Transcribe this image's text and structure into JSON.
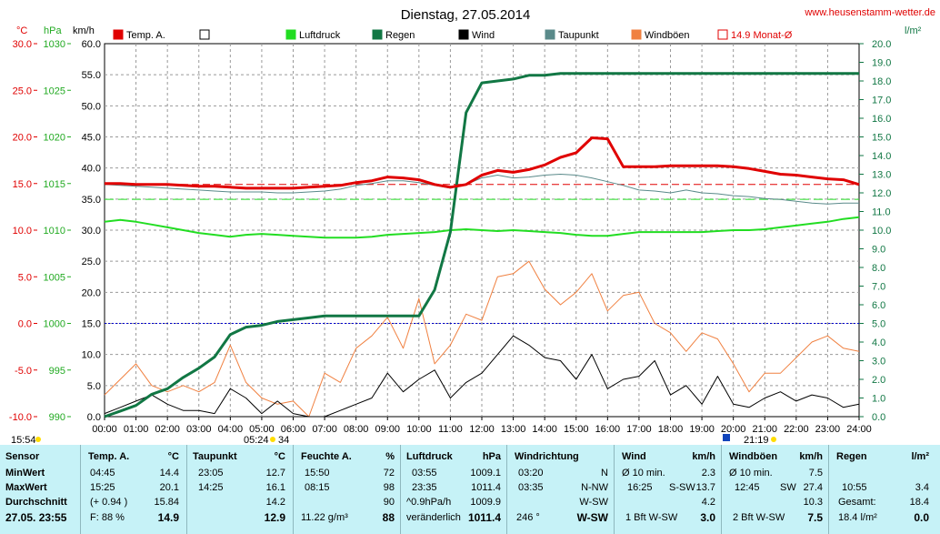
{
  "title": "Dienstag, 27.05.2014",
  "site": "www.heusenstamm-wetter.de",
  "unit_labels": {
    "celsius": "°C",
    "hpa": "hPa",
    "kmh": "km/h",
    "lm2": "l/m²"
  },
  "legend": [
    {
      "label": "Temp. A.",
      "color": "#e00000"
    },
    {
      "label": "",
      "color": "#ffffff"
    },
    {
      "label": "Luftdruck",
      "color": "#22dd22"
    },
    {
      "label": "Regen",
      "color": "#117744"
    },
    {
      "label": "Wind",
      "color": "#000000"
    },
    {
      "label": "Taupunkt",
      "color": "#5a8a8a"
    },
    {
      "label": "Windböen",
      "color": "#f08040"
    },
    {
      "label": "14.9 Monat-Ø",
      "color": "#e00000"
    }
  ],
  "axis_ticks": {
    "temp": [
      "30.0",
      "25.0",
      "20.0",
      "15.0",
      "10.0",
      "5.0",
      "0.0",
      "-5.0",
      "-10.0"
    ],
    "pressure": [
      "1030",
      "1025",
      "1020",
      "1015",
      "1010",
      "1005",
      "1000",
      "995",
      "990"
    ],
    "wind": [
      "60.0",
      "55.0",
      "50.0",
      "45.0",
      "40.0",
      "35.0",
      "30.0",
      "25.0",
      "20.0",
      "15.0",
      "10.0",
      "5.0",
      "0.0"
    ],
    "rain": [
      "20.0",
      "19.0",
      "18.0",
      "17.0",
      "16.0",
      "15.0",
      "14.0",
      "13.0",
      "12.0",
      "11.0",
      "10.0",
      "9.0",
      "8.0",
      "7.0",
      "6.0",
      "5.0",
      "4.0",
      "3.0",
      "2.0",
      "1.0",
      "0.0"
    ],
    "time": [
      "00:00",
      "01:00",
      "02:00",
      "03:00",
      "04:00",
      "05:00",
      "06:00",
      "07:00",
      "08:00",
      "09:00",
      "10:00",
      "11:00",
      "12:00",
      "13:00",
      "14:00",
      "15:00",
      "16:00",
      "17:00",
      "18:00",
      "19:00",
      "20:00",
      "21:00",
      "22:00",
      "23:00",
      "24:00"
    ]
  },
  "markers": {
    "sunrise": "05:24",
    "sunrise_suffix": "34",
    "sunset": "21:19",
    "corner_time": "15:54"
  },
  "colors": {
    "temp": "#e00000",
    "pressure": "#22dd22",
    "rain": "#117744",
    "wind": "#000000",
    "dew": "#5a8a8a",
    "gust": "#f08040",
    "zero_line": "#0000cc",
    "panel_bg": "#c6f2f7"
  },
  "chart_data": {
    "type": "line",
    "title": "Dienstag, 27.05.2014",
    "x_hours": [
      0,
      0.5,
      1,
      1.5,
      2,
      2.5,
      3,
      3.5,
      4,
      4.5,
      5,
      5.5,
      6,
      6.5,
      7,
      7.5,
      8,
      8.5,
      9,
      9.5,
      10,
      10.5,
      11,
      11.5,
      12,
      12.5,
      13,
      13.5,
      14,
      14.5,
      15,
      15.5,
      16,
      16.5,
      17,
      17.5,
      18,
      18.5,
      19,
      19.5,
      20,
      20.5,
      21,
      21.5,
      22,
      22.5,
      23,
      23.5,
      24
    ],
    "series": [
      {
        "name": "Temp. A.",
        "axis": "celsius",
        "values": [
          15.0,
          15.0,
          14.9,
          14.9,
          14.9,
          14.8,
          14.7,
          14.7,
          14.6,
          14.5,
          14.5,
          14.5,
          14.5,
          14.6,
          14.7,
          14.8,
          15.1,
          15.3,
          15.7,
          15.6,
          15.4,
          14.9,
          14.6,
          14.9,
          15.9,
          16.4,
          16.2,
          16.5,
          17.0,
          17.8,
          18.3,
          19.9,
          19.8,
          16.8,
          16.8,
          16.8,
          16.9,
          16.9,
          16.9,
          16.9,
          16.8,
          16.6,
          16.3,
          16.0,
          15.9,
          15.7,
          15.5,
          15.4,
          14.9
        ]
      },
      {
        "name": "Taupunkt",
        "axis": "celsius",
        "values": [
          14.9,
          14.8,
          14.7,
          14.6,
          14.5,
          14.4,
          14.3,
          14.2,
          14.1,
          14.1,
          14.1,
          14.0,
          14.0,
          14.1,
          14.2,
          14.4,
          14.8,
          15.0,
          15.3,
          15.3,
          15.1,
          14.8,
          14.5,
          14.9,
          15.6,
          15.9,
          15.6,
          15.7,
          15.9,
          16.0,
          15.9,
          15.6,
          15.2,
          14.8,
          14.3,
          14.2,
          14.0,
          14.3,
          14.0,
          13.9,
          13.7,
          13.6,
          13.4,
          13.3,
          13.1,
          12.9,
          12.8,
          12.9,
          12.9
        ]
      },
      {
        "name": "Luftdruck",
        "axis": "hPa",
        "values": [
          1010.9,
          1011.1,
          1010.9,
          1010.6,
          1010.3,
          1010.0,
          1009.7,
          1009.5,
          1009.3,
          1009.5,
          1009.6,
          1009.5,
          1009.4,
          1009.3,
          1009.2,
          1009.2,
          1009.2,
          1009.3,
          1009.5,
          1009.6,
          1009.7,
          1009.8,
          1010.0,
          1010.1,
          1010.0,
          1009.9,
          1010.0,
          1009.9,
          1009.8,
          1009.7,
          1009.5,
          1009.4,
          1009.4,
          1009.6,
          1009.8,
          1009.8,
          1009.8,
          1009.8,
          1009.8,
          1009.9,
          1010.0,
          1010.0,
          1010.1,
          1010.3,
          1010.5,
          1010.7,
          1010.9,
          1011.2,
          1011.4
        ]
      },
      {
        "name": "Regen",
        "axis": "l/m²",
        "values": [
          0.0,
          0.3,
          0.6,
          1.2,
          1.5,
          2.1,
          2.6,
          3.2,
          4.4,
          4.8,
          4.9,
          5.1,
          5.2,
          5.3,
          5.4,
          5.4,
          5.4,
          5.4,
          5.4,
          5.4,
          5.4,
          6.8,
          9.9,
          16.3,
          17.9,
          18.0,
          18.1,
          18.3,
          18.3,
          18.4,
          18.4,
          18.4,
          18.4,
          18.4,
          18.4,
          18.4,
          18.4,
          18.4,
          18.4,
          18.4,
          18.4,
          18.4,
          18.4,
          18.4,
          18.4,
          18.4,
          18.4,
          18.4,
          18.4
        ]
      },
      {
        "name": "Wind",
        "axis": "km/h",
        "values": [
          0.5,
          1.5,
          2.5,
          3.5,
          2.0,
          1.0,
          1.0,
          0.5,
          4.5,
          3.0,
          0.5,
          2.5,
          0.5,
          0.0,
          0.0,
          1.0,
          2.0,
          3.0,
          7.0,
          4.0,
          6.0,
          7.5,
          3.0,
          5.5,
          7.0,
          10.0,
          13.0,
          11.5,
          9.5,
          9.0,
          6.0,
          10.0,
          4.5,
          6.0,
          6.5,
          9.0,
          3.5,
          5.0,
          2.0,
          6.5,
          2.0,
          1.5,
          3.0,
          4.0,
          2.5,
          3.5,
          3.0,
          1.5,
          2.0
        ]
      },
      {
        "name": "Windböen",
        "axis": "km/h",
        "values": [
          3.5,
          6.0,
          8.5,
          5.0,
          4.0,
          5.0,
          4.0,
          5.5,
          11.5,
          5.5,
          3.0,
          2.0,
          2.5,
          0.0,
          7.0,
          5.5,
          11.0,
          13.0,
          16.0,
          11.0,
          19.0,
          8.5,
          11.5,
          16.5,
          15.5,
          22.5,
          23.0,
          25.0,
          20.5,
          18.0,
          20.0,
          23.0,
          17.0,
          19.5,
          20.0,
          15.0,
          13.5,
          10.5,
          13.5,
          12.5,
          8.5,
          4.0,
          7.0,
          7.0,
          9.5,
          12.0,
          13.0,
          11.0,
          10.5
        ]
      }
    ],
    "reference_lines": [
      {
        "label": "14.9 Monat-Ø",
        "axis": "celsius",
        "value": 14.9
      },
      {
        "axis": "celsius",
        "value": 0
      }
    ],
    "axes": {
      "celsius": {
        "label": "°C",
        "range": [
          -10,
          30
        ]
      },
      "hPa": {
        "label": "hPa",
        "range": [
          990,
          1030
        ]
      },
      "km/h": {
        "label": "km/h",
        "range": [
          0,
          60
        ]
      },
      "l/m²": {
        "label": "l/m²",
        "range": [
          0,
          20
        ]
      },
      "time": {
        "range": [
          "00:00",
          "24:00"
        ]
      }
    },
    "grid": true,
    "legend_position": "top"
  },
  "stats": {
    "sensor": {
      "header": "Sensor",
      "rows": [
        "MinWert",
        "MaxWert",
        "Durchschnitt",
        "27.05. 23:55"
      ]
    },
    "temp": {
      "header": "Temp. A.",
      "unit": "°C",
      "min_time": "04:45",
      "min": "14.4",
      "max_time": "15:25",
      "max": "20.1",
      "avg_note": "(+ 0.94 )",
      "avg": "15.84",
      "cur_note": "F: 88 %",
      "cur": "14.9"
    },
    "dew": {
      "header": "Taupunkt",
      "unit": "°C",
      "min_time": "23:05",
      "min": "12.7",
      "max_time": "14:25",
      "max": "16.1",
      "avg": "14.2",
      "cur": "12.9"
    },
    "hum": {
      "header": "Feuchte A.",
      "unit": "%",
      "min_time": "15:50",
      "min": "72",
      "max_time": "08:15",
      "max": "98",
      "avg": "90",
      "cur_note": "11.22 g/m³",
      "cur": "88"
    },
    "press": {
      "header": "Luftdruck",
      "unit": "hPa",
      "min_time": "03:55",
      "min": "1009.1",
      "max_time": "23:35",
      "max": "1011.4",
      "avg_note": "^0.9hPa/h",
      "avg": "1009.9",
      "cur_note": "veränderlich",
      "cur": "1011.4"
    },
    "dir": {
      "header": "Windrichtung",
      "min_time": "03:20",
      "min": "N",
      "max_time": "03:35",
      "max": "N-NW",
      "avg": "W-SW",
      "cur_note": "246 °",
      "cur": "W-SW"
    },
    "wind": {
      "header": "Wind",
      "unit": "km/h",
      "min_time": "Ø 10 min.",
      "min": "2.3",
      "max_time": "16:25",
      "max_dir": "S-SW",
      "max": "13.7",
      "avg": "4.2",
      "cur_note": "1 Bft W-SW",
      "cur": "3.0"
    },
    "gust": {
      "header": "Windböen",
      "unit": "km/h",
      "min_time": "Ø 10 min.",
      "min": "7.5",
      "max_time": "12:45",
      "max_dir": "SW",
      "max": "27.4",
      "avg": "10.3",
      "cur_note": "2 Bft W-SW",
      "cur": "7.5"
    },
    "rain": {
      "header": "Regen",
      "unit": "l/m²",
      "max_time": "10:55",
      "max": "3.4",
      "avg_note": "Gesamt:",
      "avg": "18.4",
      "cur_note": "18.4 l/m²",
      "cur": "0.0"
    }
  }
}
